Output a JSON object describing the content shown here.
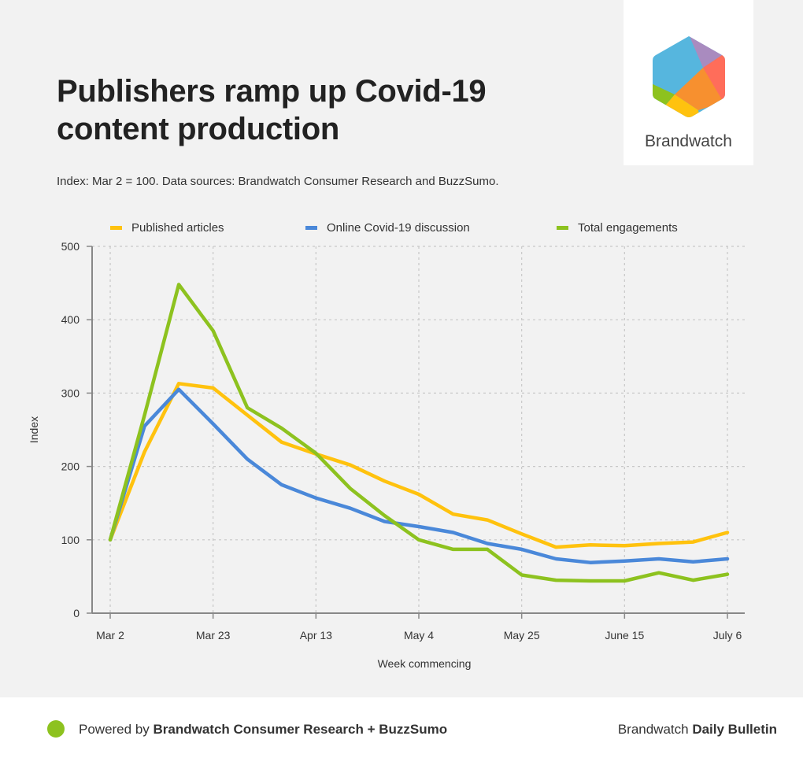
{
  "header": {
    "title": "Publishers ramp up Covid-19 content production",
    "subtitle": "Index: Mar 2 = 100. Data sources: Brandwatch Consumer Research and BuzzSumo."
  },
  "logo": {
    "text": "Brandwatch",
    "colors": [
      "#56b6de",
      "#a98bbf",
      "#ff6d5a",
      "#f7902f",
      "#ffc20e",
      "#8dc21f"
    ]
  },
  "footer": {
    "powered_prefix": "Powered by ",
    "powered_bold": "Brandwatch Consumer Research + BuzzSumo",
    "right_prefix": "Brandwatch ",
    "right_bold": "Daily Bulletin",
    "dot_color": "#8dc21f"
  },
  "chart_data": {
    "type": "line",
    "title": "Publishers ramp up Covid-19 content production",
    "xlabel": "Week commencing",
    "ylabel": "Index",
    "ylim": [
      0,
      500
    ],
    "yticks": [
      0,
      100,
      200,
      300,
      400,
      500
    ],
    "x_tick_labels": [
      "Mar 2",
      "Mar 23",
      "Apr 13",
      "May 4",
      "May 25",
      "June 15",
      "July 6"
    ],
    "x_tick_indices": [
      0,
      3,
      6,
      9,
      12,
      15,
      18
    ],
    "x": [
      "Mar 2",
      "Mar 9",
      "Mar 16",
      "Mar 23",
      "Mar 30",
      "Apr 6",
      "Apr 13",
      "Apr 20",
      "Apr 27",
      "May 4",
      "May 11",
      "May 18",
      "May 25",
      "Jun 1",
      "Jun 8",
      "June 15",
      "Jun 22",
      "Jun 29",
      "July 6"
    ],
    "grid": true,
    "legend_position": "top",
    "series": [
      {
        "name": "Published articles",
        "color": "#ffc20e",
        "values": [
          100,
          220,
          313,
          307,
          270,
          233,
          217,
          202,
          180,
          162,
          135,
          127,
          108,
          90,
          93,
          92,
          95,
          97,
          110
        ]
      },
      {
        "name": "Online Covid-19 discussion",
        "color": "#4a88d9",
        "values": [
          100,
          255,
          305,
          258,
          210,
          175,
          157,
          143,
          125,
          118,
          110,
          95,
          87,
          74,
          69,
          71,
          74,
          70,
          74
        ]
      },
      {
        "name": "Total engagements",
        "color": "#8dc21f",
        "values": [
          100,
          270,
          448,
          385,
          280,
          252,
          218,
          170,
          133,
          100,
          87,
          87,
          52,
          45,
          44,
          44,
          55,
          45,
          53
        ]
      }
    ]
  }
}
